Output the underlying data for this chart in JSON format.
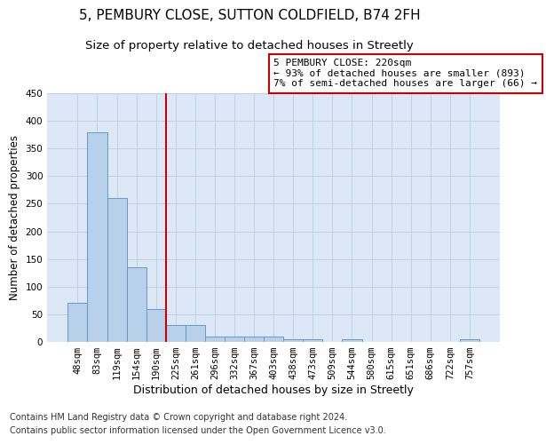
{
  "title1": "5, PEMBURY CLOSE, SUTTON COLDFIELD, B74 2FH",
  "title2": "Size of property relative to detached houses in Streetly",
  "xlabel": "Distribution of detached houses by size in Streetly",
  "ylabel": "Number of detached properties",
  "categories": [
    "48sqm",
    "83sqm",
    "119sqm",
    "154sqm",
    "190sqm",
    "225sqm",
    "261sqm",
    "296sqm",
    "332sqm",
    "367sqm",
    "403sqm",
    "438sqm",
    "473sqm",
    "509sqm",
    "544sqm",
    "580sqm",
    "615sqm",
    "651sqm",
    "686sqm",
    "722sqm",
    "757sqm"
  ],
  "values": [
    70,
    380,
    260,
    135,
    60,
    30,
    30,
    10,
    10,
    10,
    10,
    5,
    5,
    0,
    5,
    0,
    0,
    0,
    0,
    0,
    5
  ],
  "bar_color": "#b8d0ea",
  "bar_edge_color": "#6699cc",
  "vline_x": 4.5,
  "vline_color": "#cc0000",
  "annotation_text": "5 PEMBURY CLOSE: 220sqm\n← 93% of detached houses are smaller (893)\n7% of semi-detached houses are larger (66) →",
  "annotation_box_color": "#ffffff",
  "annotation_box_edge": "#cc0000",
  "ylim": [
    0,
    450
  ],
  "yticks": [
    0,
    50,
    100,
    150,
    200,
    250,
    300,
    350,
    400,
    450
  ],
  "grid_color": "#b8cfe0",
  "background_color": "#dce8f5",
  "footer1": "Contains HM Land Registry data © Crown copyright and database right 2024.",
  "footer2": "Contains public sector information licensed under the Open Government Licence v3.0.",
  "title1_fontsize": 11,
  "title2_fontsize": 9.5,
  "xlabel_fontsize": 9,
  "ylabel_fontsize": 8.5,
  "tick_fontsize": 7.5,
  "footer_fontsize": 7
}
